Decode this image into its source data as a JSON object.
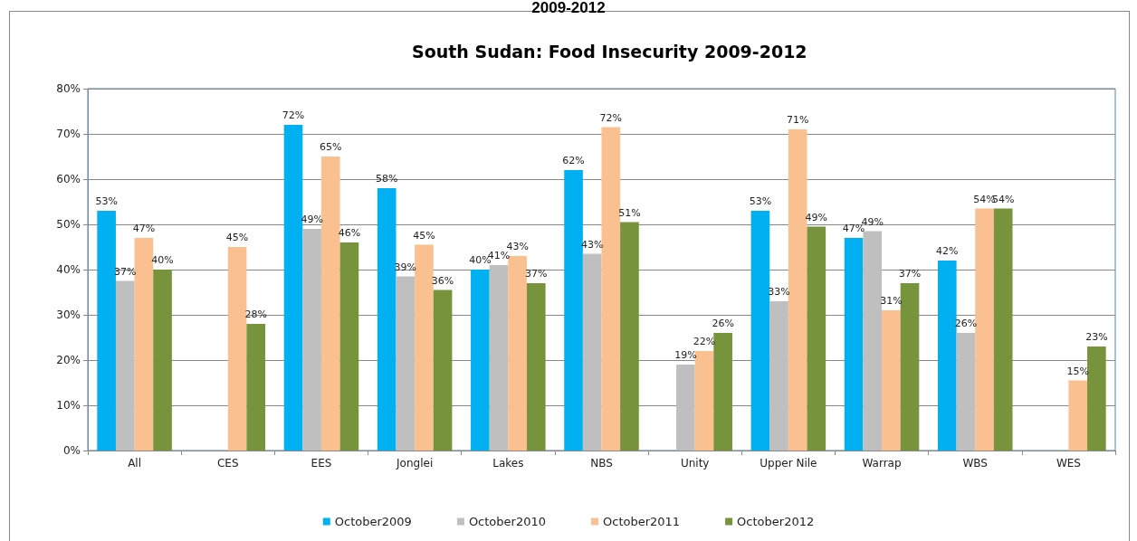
{
  "chart_data": {
    "type": "bar",
    "title": "South Sudan: Food Insecurity 2009-2012",
    "annotations": [
      "2009-2012"
    ],
    "categories": [
      "All",
      "CES",
      "EES",
      "Jonglei",
      "Lakes",
      "NBS",
      "Unity",
      "Upper Nile",
      "Warrap",
      "WBS",
      "WES"
    ],
    "series": [
      {
        "name": "October2009",
        "color": "#00b0f0",
        "values": [
          53,
          null,
          72,
          58,
          40,
          62,
          null,
          53,
          47,
          42,
          null
        ],
        "value_labels": [
          "53%",
          null,
          "72%",
          "58%",
          "40%",
          "62%",
          null,
          "53%",
          "47%",
          "42%",
          null
        ]
      },
      {
        "name": "October2010",
        "color": "#bfbfbf",
        "values": [
          37.5,
          null,
          49,
          38.5,
          41,
          43.5,
          19,
          33,
          48.5,
          26,
          null
        ],
        "value_labels": [
          "37%",
          null,
          "49%",
          "39%",
          "41%",
          "43%",
          "19%",
          "33%",
          "49%",
          "26%",
          null
        ]
      },
      {
        "name": "October2011",
        "color": "#fac090",
        "values": [
          47,
          45,
          65,
          45.5,
          43,
          71.5,
          22,
          71,
          31,
          53.5,
          15.5
        ],
        "value_labels": [
          "47%",
          "45%",
          "65%",
          "45%",
          "43%",
          "72%",
          "22%",
          "71%",
          "31%",
          "54%",
          "15%"
        ]
      },
      {
        "name": "October2012",
        "color": "#77933c",
        "values": [
          40,
          28,
          46,
          35.5,
          37,
          50.5,
          26,
          49.5,
          37,
          53.5,
          23
        ],
        "value_labels": [
          "40%",
          "28%",
          "46%",
          "36%",
          "37%",
          "51%",
          "26%",
          "49%",
          "37%",
          "54%",
          "23%"
        ]
      }
    ],
    "ylim": [
      0,
      80
    ],
    "yticks": [
      {
        "value": 0,
        "label": "0%"
      },
      {
        "value": 10,
        "label": "10%"
      },
      {
        "value": 20,
        "label": "20%"
      },
      {
        "value": 30,
        "label": "30%"
      },
      {
        "value": 40,
        "label": "40%"
      },
      {
        "value": 50,
        "label": "50%"
      },
      {
        "value": 60,
        "label": "60%"
      },
      {
        "value": 70,
        "label": "70%"
      },
      {
        "value": 80,
        "label": "80%"
      }
    ],
    "grid": "y",
    "legend": "bottom"
  }
}
